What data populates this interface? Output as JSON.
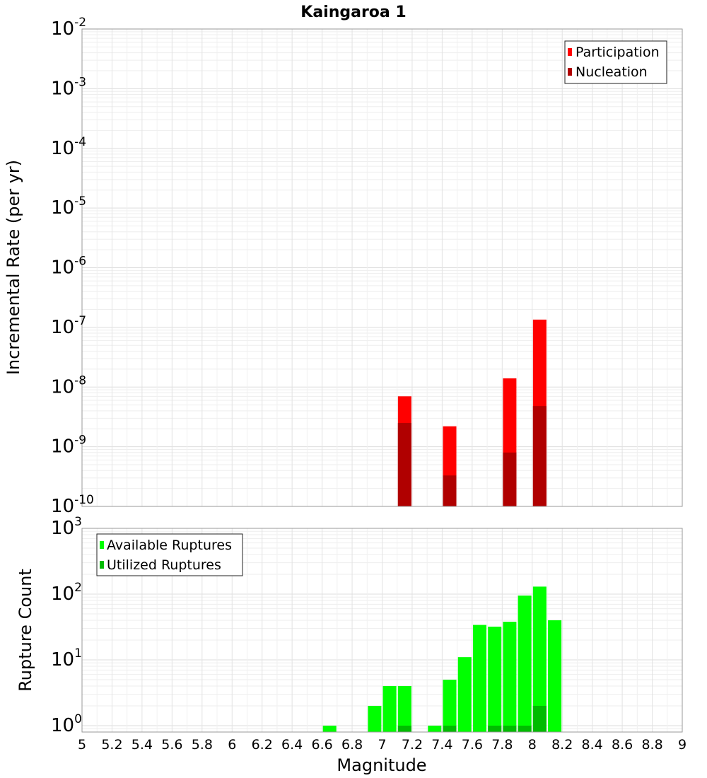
{
  "chart_data": [
    {
      "type": "bar",
      "title": "Kaingaroa 1",
      "xlabel": "",
      "ylabel": "Incremental Rate (per yr)",
      "yscale": "log",
      "xlim": [
        5,
        9
      ],
      "ylim": [
        1e-10,
        0.01
      ],
      "y_ticks": [
        {
          "base": "10",
          "exp": "-2",
          "value": 0.01
        },
        {
          "base": "10",
          "exp": "-3",
          "value": 0.001
        },
        {
          "base": "10",
          "exp": "-4",
          "value": 0.0001
        },
        {
          "base": "10",
          "exp": "-5",
          "value": 1e-05
        },
        {
          "base": "10",
          "exp": "-6",
          "value": 1e-06
        },
        {
          "base": "10",
          "exp": "-7",
          "value": 1e-07
        },
        {
          "base": "10",
          "exp": "-8",
          "value": 1e-08
        },
        {
          "base": "10",
          "exp": "-9",
          "value": 1e-09
        },
        {
          "base": "10",
          "exp": "-10",
          "value": 1e-10
        }
      ],
      "grid": true,
      "legend_position": "top-right",
      "series": [
        {
          "name": "Participation",
          "color": "#ff0000",
          "x": [
            7.15,
            7.45,
            7.85,
            8.05
          ],
          "values": [
            7e-09,
            2.2e-09,
            1.4e-08,
            1.35e-07
          ]
        },
        {
          "name": "Nucleation",
          "color": "#b00000",
          "x": [
            7.15,
            7.45,
            7.85,
            8.05
          ],
          "values": [
            2.5e-09,
            3.3e-10,
            8e-10,
            4.8e-09
          ]
        }
      ]
    },
    {
      "type": "bar",
      "title": "",
      "xlabel": "Magnitude",
      "ylabel": "Rupture Count",
      "yscale": "log",
      "xlim": [
        5,
        9
      ],
      "ylim": [
        0.8,
        1000
      ],
      "y_ticks": [
        {
          "base": "10",
          "exp": "3",
          "value": 1000
        },
        {
          "base": "10",
          "exp": "2",
          "value": 100
        },
        {
          "base": "10",
          "exp": "1",
          "value": 10
        },
        {
          "base": "10",
          "exp": "0",
          "value": 1
        }
      ],
      "x_ticks": [
        "5",
        "5.2",
        "5.4",
        "5.6",
        "5.8",
        "6",
        "6.2",
        "6.4",
        "6.6",
        "6.8",
        "7",
        "7.2",
        "7.4",
        "7.6",
        "7.8",
        "8",
        "8.2",
        "8.4",
        "8.6",
        "8.8",
        "9"
      ],
      "grid": true,
      "legend_position": "top-left",
      "series": [
        {
          "name": "Available Ruptures",
          "color": "#00ff00",
          "x": [
            6.65,
            6.95,
            7.05,
            7.15,
            7.35,
            7.45,
            7.55,
            7.65,
            7.75,
            7.85,
            7.95,
            8.05,
            8.15
          ],
          "values": [
            1,
            2,
            4,
            4,
            1,
            5,
            11,
            34,
            32,
            38,
            95,
            130,
            40
          ]
        },
        {
          "name": "Utilized Ruptures",
          "color": "#00bb00",
          "x": [
            7.15,
            7.45,
            7.75,
            7.85,
            7.95,
            8.05
          ],
          "values": [
            1,
            1,
            1,
            1,
            1,
            2
          ]
        }
      ]
    }
  ]
}
